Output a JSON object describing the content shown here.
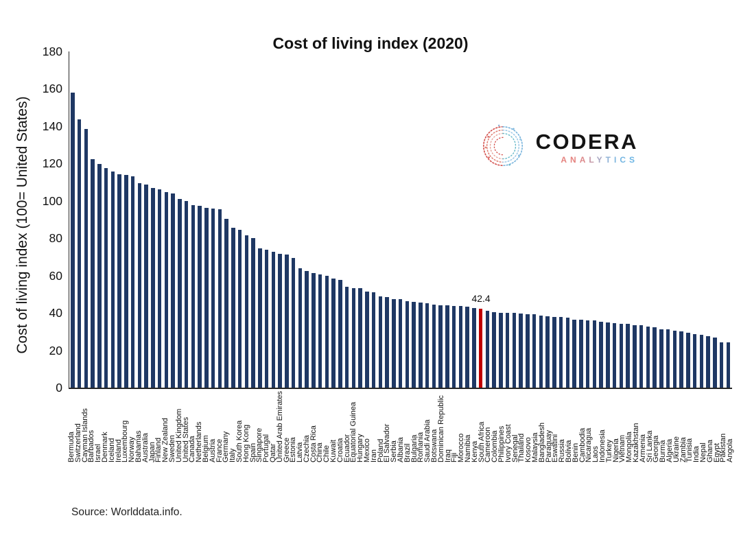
{
  "title": "Cost of living index (2020)",
  "y_axis_label": "Cost of living index (100= United States)",
  "source": "Source: Worlddata.info.",
  "annotation": {
    "text": "42.4"
  },
  "logo": {
    "name": "CODERA",
    "subtitle": "ANALYTICS",
    "subtitle_letter_colors": [
      "#e5837f",
      "#e5837f",
      "#dd8a8c",
      "#c598a7",
      "#a8a6c2",
      "#8fb2d6",
      "#7fb6de",
      "#74b6e2",
      "#6cb5e4"
    ]
  },
  "colors": {
    "bar": "#1f3864",
    "highlight": "#c00000",
    "axis": "#262626"
  },
  "chart_data": {
    "type": "bar",
    "title": "Cost of living index (2020)",
    "xlabel": "",
    "ylabel": "Cost of living index (100= United States)",
    "ylim": [
      0,
      180
    ],
    "yticks": [
      0,
      20,
      40,
      60,
      80,
      100,
      120,
      140,
      160,
      180
    ],
    "grid": false,
    "legend": false,
    "highlight_country": "South Africa",
    "highlight_value_label": "42.4",
    "categories": [
      "Bermuda",
      "Switzerland",
      "Cayman Islands",
      "Barbados",
      "Israel",
      "Denmark",
      "Iceland",
      "Ireland",
      "Luxembourg",
      "Norway",
      "Bahamas",
      "Australia",
      "Japan",
      "Finland",
      "New Zealand",
      "Sweden",
      "United Kingdom",
      "United States",
      "Canada",
      "Netherlands",
      "Belgium",
      "Austria",
      "France",
      "Germany",
      "Italy",
      "South Korea",
      "Hong Kong",
      "Spain",
      "Singapore",
      "Portugal",
      "Qatar",
      "United Arab Emirates",
      "Greece",
      "Estonia",
      "Latvia",
      "Czechia",
      "Costa Rica",
      "China",
      "Chile",
      "Kuwait",
      "Croatia",
      "Ecuador",
      "Equatorial Guinea",
      "Hungary",
      "Mexico",
      "Iran",
      "Poland",
      "El Salvador",
      "Serbia",
      "Albania",
      "Brazil",
      "Bulgaria",
      "Romania",
      "Saudi Arabia",
      "Botswana",
      "Dominican Republic",
      "Iraq",
      "Fiji",
      "Morocco",
      "Namibia",
      "Kenya",
      "South Africa",
      "Cameroon",
      "Colombia",
      "Philippines",
      "Ivory Coast",
      "Senegal",
      "Thailand",
      "Kosovo",
      "Malaysia",
      "Bangladesh",
      "Paraguay",
      "Eswatini",
      "Russia",
      "Bolivia",
      "Benin",
      "Cambodia",
      "Nicaragua",
      "Laos",
      "Indonesia",
      "Turkey",
      "Nigeria",
      "Vietnam",
      "Mongolia",
      "Kazakhstan",
      "Armenia",
      "Sri Lanka",
      "Georgia",
      "Burma",
      "Algeria",
      "Ukraine",
      "Zambia",
      "Tunisia",
      "India",
      "Nepal",
      "Ghana",
      "Egypt",
      "Pakistan",
      "Angola"
    ],
    "values": [
      157.8,
      143.6,
      138.4,
      122.3,
      119.6,
      117.6,
      115.8,
      114.1,
      113.9,
      113.1,
      109.5,
      108.9,
      106.9,
      106.1,
      104.6,
      104.0,
      101.0,
      100.0,
      97.7,
      97.4,
      96.3,
      96.0,
      95.6,
      90.5,
      85.7,
      84.6,
      81.5,
      80.2,
      74.7,
      73.8,
      72.6,
      71.7,
      71.2,
      69.6,
      64.0,
      62.4,
      61.2,
      60.5,
      59.8,
      58.6,
      57.8,
      54.0,
      53.4,
      53.2,
      51.3,
      51.1,
      48.9,
      48.5,
      47.5,
      47.3,
      46.3,
      45.8,
      45.6,
      45.3,
      44.4,
      44.2,
      44.0,
      43.8,
      43.6,
      43.3,
      42.8,
      42.4,
      41.0,
      40.5,
      40.2,
      40.1,
      39.9,
      39.7,
      39.5,
      39.3,
      38.5,
      38.3,
      38.0,
      37.9,
      37.5,
      36.4,
      36.3,
      36.2,
      36.0,
      35.3,
      34.9,
      34.7,
      34.3,
      34.0,
      33.6,
      33.5,
      32.8,
      32.2,
      31.2,
      31.1,
      30.6,
      30.0,
      29.3,
      28.8,
      28.4,
      27.4,
      26.8,
      24.4,
      24.1
    ]
  }
}
